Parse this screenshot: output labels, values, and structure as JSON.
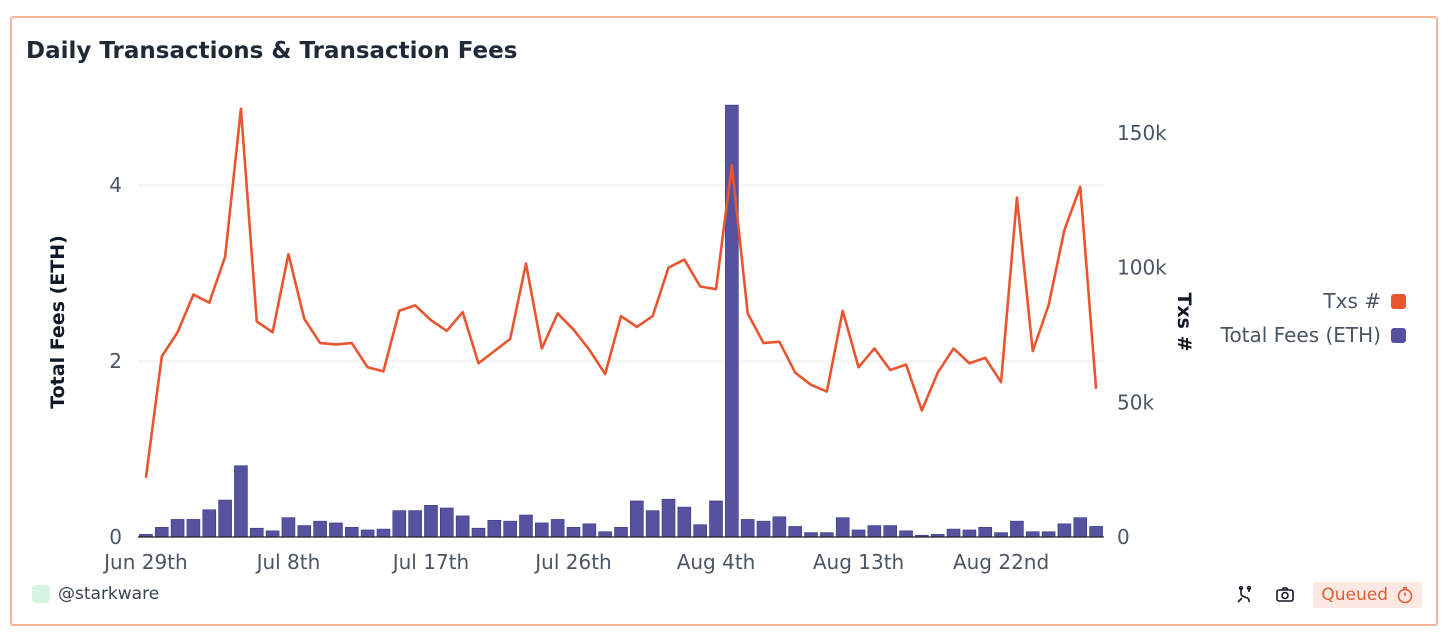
{
  "card": {
    "title": "Daily Transactions & Transaction Fees",
    "author": "@starkware",
    "status": "Queued"
  },
  "colors": {
    "txs_line": "#e8552f",
    "fees_bar": "#5553a0",
    "grid": "#ececec"
  },
  "chart_data": {
    "type": "bar",
    "title": "Daily Transactions & Transaction Fees",
    "x_tick_labels": [
      "Jun 29th",
      "Jul 8th",
      "Jul 17th",
      "Jul 26th",
      "Aug 4th",
      "Aug 13th",
      "Aug 22nd"
    ],
    "x_tick_indices": [
      0,
      9,
      18,
      27,
      36,
      45,
      54
    ],
    "ylabel_left": "Total Fees (ETH)",
    "ylabel_right": "Txs #",
    "ylim_left": [
      0,
      4.9
    ],
    "yticks_left": [
      0,
      2,
      4
    ],
    "ylim_right": [
      0,
      160000
    ],
    "yticks_right": [
      0,
      50000,
      100000,
      150000
    ],
    "yticks_right_labels": [
      "0",
      "50k",
      "100k",
      "150k"
    ],
    "legend": [
      "Txs #",
      "Total Fees (ETH)"
    ],
    "legend_position": "right",
    "series": [
      {
        "name": "Total Fees (ETH)",
        "type": "bar",
        "axis": "left",
        "values": [
          0.03,
          0.11,
          0.2,
          0.2,
          0.31,
          0.42,
          0.81,
          0.1,
          0.07,
          0.22,
          0.13,
          0.18,
          0.16,
          0.11,
          0.08,
          0.09,
          0.3,
          0.3,
          0.36,
          0.33,
          0.24,
          0.1,
          0.19,
          0.18,
          0.25,
          0.16,
          0.2,
          0.11,
          0.15,
          0.06,
          0.11,
          0.41,
          0.3,
          0.43,
          0.34,
          0.14,
          0.41,
          4.91,
          0.2,
          0.18,
          0.23,
          0.12,
          0.05,
          0.05,
          0.22,
          0.08,
          0.13,
          0.13,
          0.07,
          0.02,
          0.03,
          0.09,
          0.08,
          0.11,
          0.05,
          0.18,
          0.06,
          0.06,
          0.15,
          0.22,
          0.12
        ]
      },
      {
        "name": "Txs #",
        "type": "line",
        "axis": "right",
        "values": [
          22000,
          67000,
          76000,
          90000,
          87000,
          104000,
          159000,
          80000,
          76000,
          105000,
          81000,
          72000,
          71500,
          72000,
          63000,
          61500,
          84000,
          86000,
          80500,
          76500,
          83500,
          64500,
          69000,
          73500,
          101500,
          70000,
          83000,
          77000,
          69500,
          60500,
          82000,
          78000,
          82000,
          100000,
          103000,
          93000,
          92000,
          138000,
          83000,
          72000,
          72500,
          61000,
          56500,
          54000,
          84000,
          63000,
          70000,
          62000,
          64000,
          47000,
          61000,
          70000,
          64500,
          66500,
          57500,
          126000,
          69000,
          86000,
          114000,
          130000,
          55000
        ]
      }
    ]
  }
}
